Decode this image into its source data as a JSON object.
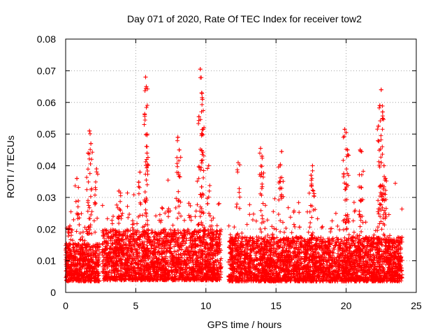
{
  "chart_data": {
    "type": "scatter",
    "title": "Day 071 of 2020, Rate Of TEC Index for receiver tow2",
    "xlabel": "GPS time / hours",
    "ylabel": "ROTI / TECUs",
    "xlim": [
      0,
      25
    ],
    "ylim": [
      0,
      0.08
    ],
    "xticks": [
      "0",
      "5",
      "10",
      "15",
      "20",
      "25"
    ],
    "yticks": [
      "0",
      "0.01",
      "0.02",
      "0.03",
      "0.04",
      "0.05",
      "0.06",
      "0.07",
      "0.08"
    ],
    "grid": true,
    "marker": "+",
    "color": "#ff0000",
    "series": [
      {
        "name": "ROTI",
        "segments": [
          {
            "start": 0.0,
            "end": 2.4,
            "base": 0.01,
            "spread": 0.012
          },
          {
            "start": 2.6,
            "end": 11.1,
            "base": 0.011,
            "spread": 0.016
          },
          {
            "start": 11.6,
            "end": 24.0,
            "base": 0.01,
            "spread": 0.014
          }
        ],
        "peaks": [
          {
            "x": 0.3,
            "y": 0.021
          },
          {
            "x": 0.8,
            "y": 0.036
          },
          {
            "x": 1.6,
            "y": 0.044
          },
          {
            "x": 1.7,
            "y": 0.051
          },
          {
            "x": 1.8,
            "y": 0.047
          },
          {
            "x": 2.2,
            "y": 0.039
          },
          {
            "x": 3.8,
            "y": 0.032
          },
          {
            "x": 5.3,
            "y": 0.038
          },
          {
            "x": 5.7,
            "y": 0.068
          },
          {
            "x": 5.75,
            "y": 0.065
          },
          {
            "x": 5.8,
            "y": 0.05
          },
          {
            "x": 5.8,
            "y": 0.044
          },
          {
            "x": 8.0,
            "y": 0.049
          },
          {
            "x": 8.1,
            "y": 0.045
          },
          {
            "x": 9.6,
            "y": 0.0705
          },
          {
            "x": 9.7,
            "y": 0.063
          },
          {
            "x": 9.75,
            "y": 0.061
          },
          {
            "x": 9.8,
            "y": 0.0515
          },
          {
            "x": 9.5,
            "y": 0.0555
          },
          {
            "x": 10.2,
            "y": 0.04
          },
          {
            "x": 12.3,
            "y": 0.041
          },
          {
            "x": 13.9,
            "y": 0.0455
          },
          {
            "x": 14.0,
            "y": 0.043
          },
          {
            "x": 15.4,
            "y": 0.0445
          },
          {
            "x": 15.3,
            "y": 0.04
          },
          {
            "x": 17.6,
            "y": 0.04
          },
          {
            "x": 17.5,
            "y": 0.037
          },
          {
            "x": 19.9,
            "y": 0.0515
          },
          {
            "x": 20.0,
            "y": 0.0505
          },
          {
            "x": 20.1,
            "y": 0.045
          },
          {
            "x": 21.0,
            "y": 0.045
          },
          {
            "x": 21.1,
            "y": 0.0445
          },
          {
            "x": 22.5,
            "y": 0.064
          },
          {
            "x": 22.4,
            "y": 0.059
          },
          {
            "x": 22.6,
            "y": 0.057
          },
          {
            "x": 22.3,
            "y": 0.0525
          },
          {
            "x": 22.5,
            "y": 0.041
          },
          {
            "x": 22.7,
            "y": 0.04
          },
          {
            "x": 22.8,
            "y": 0.036
          }
        ]
      }
    ]
  }
}
